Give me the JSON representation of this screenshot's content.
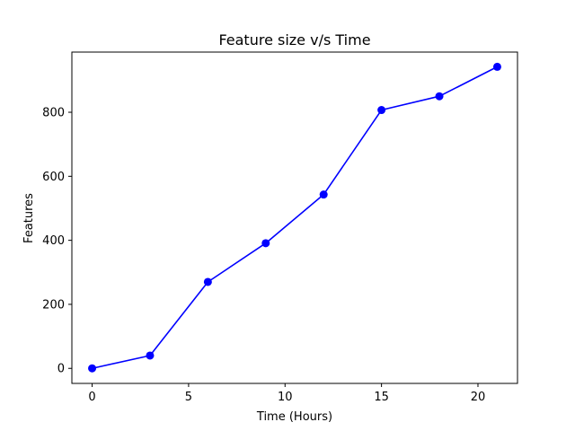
{
  "chart_data": {
    "type": "line",
    "title": "Feature size v/s Time",
    "xlabel": "Time (Hours)",
    "ylabel": "Features",
    "xlim": [
      -1.05,
      22.05
    ],
    "ylim": [
      -47,
      988
    ],
    "xticks": [
      0,
      5,
      10,
      15,
      20
    ],
    "yticks": [
      0,
      200,
      400,
      600,
      800
    ],
    "grid": false,
    "series": [
      {
        "color": "#0000ff",
        "marker": "circle",
        "x": [
          0,
          3,
          6,
          9,
          12,
          15,
          18,
          21
        ],
        "y": [
          0,
          40,
          270,
          391,
          543,
          807,
          850,
          942
        ]
      }
    ]
  }
}
